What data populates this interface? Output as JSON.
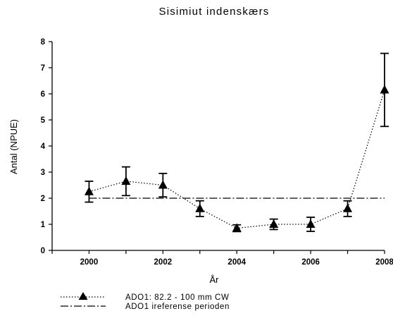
{
  "chart_data": {
    "type": "line",
    "title": "Sisimiut indenskærs",
    "xlabel": "År",
    "ylabel": "Antal (NPUE)",
    "xlim": [
      1999,
      2008
    ],
    "ylim": [
      0,
      8
    ],
    "xticks": [
      2000,
      2002,
      2004,
      2006,
      2008
    ],
    "yticks": [
      0,
      1,
      2,
      3,
      4,
      5,
      6,
      7,
      8
    ],
    "grid": false,
    "legend_position": "bottom-left",
    "series": [
      {
        "name": "ADO1: 82.2 - 100 mm CW",
        "style": "dotted",
        "marker": "triangle",
        "color": "#000000",
        "x": [
          2000,
          2001,
          2002,
          2003,
          2004,
          2005,
          2006,
          2007,
          2008
        ],
        "y": [
          2.25,
          2.65,
          2.5,
          1.6,
          0.85,
          1.0,
          1.0,
          1.6,
          6.15
        ],
        "error": [
          0.4,
          0.55,
          0.45,
          0.3,
          0.13,
          0.2,
          0.27,
          0.3,
          1.4
        ]
      },
      {
        "name": "ADO1 ireferense perioden",
        "style": "dash-dot",
        "marker": "none",
        "color": "#000000",
        "x": [
          2000,
          2008
        ],
        "y": [
          2.0,
          2.0
        ]
      }
    ]
  }
}
